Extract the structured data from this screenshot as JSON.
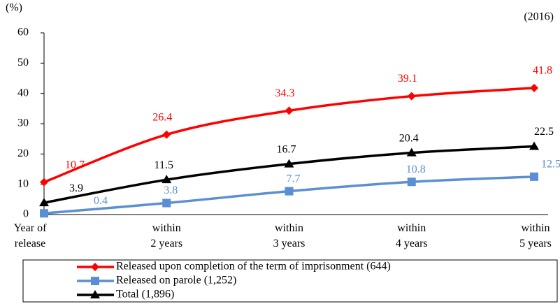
{
  "chart_data": {
    "type": "line",
    "y_label": "(%)",
    "annotation": "(2016)",
    "categories": [
      [
        "Year of",
        "release"
      ],
      [
        "within",
        "2 years"
      ],
      [
        "within",
        "3 years"
      ],
      [
        "within",
        "4 years"
      ],
      [
        "within",
        "5 years"
      ]
    ],
    "series": [
      {
        "name": "Released upon completion of the term of imprisonment (644)",
        "color": "#ff0000",
        "marker": "diamond",
        "values": [
          10.7,
          26.4,
          34.3,
          39.1,
          41.8
        ]
      },
      {
        "name": "Released on parole (1,252)",
        "color": "#5b8fd4",
        "marker": "square",
        "values": [
          0.4,
          3.8,
          7.7,
          10.8,
          12.5
        ]
      },
      {
        "name": "Total (1,896)",
        "color": "#000000",
        "marker": "triangle",
        "values": [
          3.9,
          11.5,
          16.7,
          20.4,
          22.5
        ]
      }
    ],
    "ylim": [
      0,
      60
    ],
    "yticks": [
      0,
      10,
      20,
      30,
      40,
      50,
      60
    ]
  }
}
